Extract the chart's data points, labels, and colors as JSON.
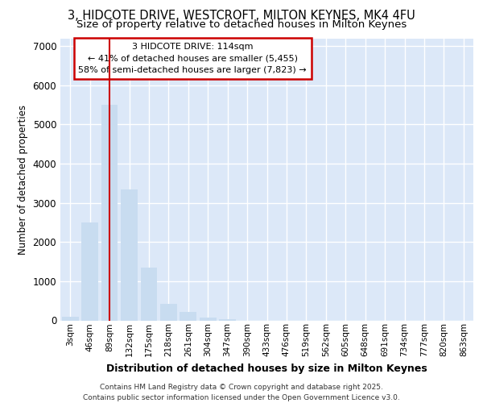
{
  "title_line1": "3, HIDCOTE DRIVE, WESTCROFT, MILTON KEYNES, MK4 4FU",
  "title_line2": "Size of property relative to detached houses in Milton Keynes",
  "xlabel": "Distribution of detached houses by size in Milton Keynes",
  "ylabel": "Number of detached properties",
  "categories": [
    "3sqm",
    "46sqm",
    "89sqm",
    "132sqm",
    "175sqm",
    "218sqm",
    "261sqm",
    "304sqm",
    "347sqm",
    "390sqm",
    "433sqm",
    "476sqm",
    "519sqm",
    "562sqm",
    "605sqm",
    "648sqm",
    "691sqm",
    "734sqm",
    "777sqm",
    "820sqm",
    "863sqm"
  ],
  "values": [
    100,
    2500,
    5500,
    3350,
    1350,
    430,
    220,
    75,
    30,
    0,
    0,
    0,
    0,
    0,
    0,
    0,
    0,
    0,
    0,
    0,
    0
  ],
  "bar_color": "#c8dcf0",
  "annotation_text_line1": "3 HIDCOTE DRIVE: 114sqm",
  "annotation_text_line2": "← 41% of detached houses are smaller (5,455)",
  "annotation_text_line3": "58% of semi-detached houses are larger (7,823) →",
  "annotation_box_facecolor": "#ffffff",
  "annotation_box_edgecolor": "#cc0000",
  "vline_color": "#cc0000",
  "vline_x": 2,
  "ylim": [
    0,
    7200
  ],
  "yticks": [
    0,
    1000,
    2000,
    3000,
    4000,
    5000,
    6000,
    7000
  ],
  "plot_bg_color": "#dce8f8",
  "grid_color": "#ffffff",
  "footer_line1": "Contains HM Land Registry data © Crown copyright and database right 2025.",
  "footer_line2": "Contains public sector information licensed under the Open Government Licence v3.0."
}
